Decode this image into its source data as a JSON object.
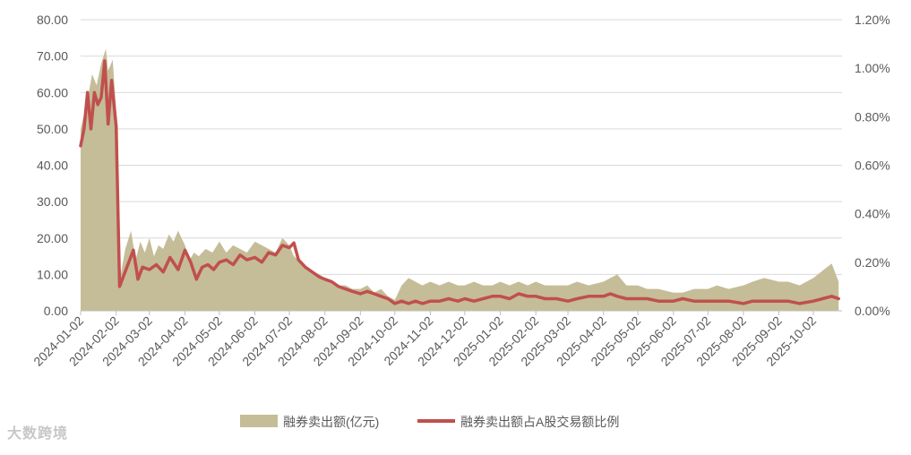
{
  "chart_data": {
    "type": "area+line",
    "title": "",
    "xlabel": "",
    "ylabel": "",
    "ylim": [
      0,
      80
    ],
    "y2lim": [
      0,
      1.2
    ],
    "grid": true,
    "legend_position": "bottom",
    "y_ticks": [
      "0.00",
      "10.00",
      "20.00",
      "30.00",
      "40.00",
      "50.00",
      "60.00",
      "70.00",
      "80.00"
    ],
    "y2_ticks": [
      "0.00%",
      "0.20%",
      "0.40%",
      "0.60%",
      "0.80%",
      "1.00%",
      "1.20%"
    ],
    "x_ticks": [
      "2024-01-02",
      "2024-02-02",
      "2024-03-02",
      "2024-04-02",
      "2024-05-02",
      "2024-06-02",
      "2024-07-02",
      "2024-08-02",
      "2024-09-02",
      "2024-10-02",
      "2024-11-02",
      "2024-12-02",
      "2025-01-02",
      "2025-02-02",
      "2025-03-02",
      "2025-04-02",
      "2025-05-02",
      "2025-06-02",
      "2025-07-02",
      "2025-08-02",
      "2025-09-02",
      "2025-10-02"
    ],
    "colors": {
      "area": "#c5bd98",
      "line": "#c0504d",
      "grid": "#d9d9d9",
      "axis": "#bfbfbf"
    },
    "series": [
      {
        "name": "融券卖出额(亿元)",
        "kind": "area",
        "axis": "left",
        "x": [
          "2024-01-02",
          "2024-01-08",
          "2024-01-12",
          "2024-01-16",
          "2024-01-20",
          "2024-01-24",
          "2024-01-26",
          "2024-01-30",
          "2024-02-02",
          "2024-02-06",
          "2024-02-10",
          "2024-02-15",
          "2024-02-19",
          "2024-02-23",
          "2024-02-27",
          "2024-03-02",
          "2024-03-06",
          "2024-03-10",
          "2024-03-14",
          "2024-03-19",
          "2024-03-23",
          "2024-03-27",
          "2024-04-02",
          "2024-04-06",
          "2024-04-10",
          "2024-04-14",
          "2024-04-20",
          "2024-04-26",
          "2024-05-02",
          "2024-05-08",
          "2024-05-14",
          "2024-05-20",
          "2024-05-26",
          "2024-06-02",
          "2024-06-08",
          "2024-06-14",
          "2024-06-20",
          "2024-06-26",
          "2024-07-02",
          "2024-07-06",
          "2024-07-10",
          "2024-07-16",
          "2024-07-22",
          "2024-07-28",
          "2024-08-02",
          "2024-08-08",
          "2024-08-14",
          "2024-08-20",
          "2024-08-26",
          "2024-09-02",
          "2024-09-08",
          "2024-09-14",
          "2024-09-20",
          "2024-09-26",
          "2024-10-02",
          "2024-10-08",
          "2024-10-14",
          "2024-10-20",
          "2024-10-26",
          "2024-11-02",
          "2024-11-10",
          "2024-11-18",
          "2024-11-26",
          "2024-12-02",
          "2024-12-10",
          "2024-12-18",
          "2024-12-26",
          "2025-01-02",
          "2025-01-10",
          "2025-01-18",
          "2025-01-26",
          "2025-02-02",
          "2025-02-10",
          "2025-02-20",
          "2025-03-02",
          "2025-03-10",
          "2025-03-20",
          "2025-04-02",
          "2025-04-08",
          "2025-04-14",
          "2025-04-22",
          "2025-05-02",
          "2025-05-10",
          "2025-05-20",
          "2025-06-02",
          "2025-06-10",
          "2025-06-20",
          "2025-07-02",
          "2025-07-10",
          "2025-07-20",
          "2025-08-02",
          "2025-08-10",
          "2025-08-20",
          "2025-09-02",
          "2025-09-10",
          "2025-09-20",
          "2025-10-02",
          "2025-10-10",
          "2025-10-18",
          "2025-10-24"
        ],
        "values": [
          50,
          58,
          65,
          62,
          68,
          72,
          66,
          69,
          55,
          10,
          17,
          22,
          14,
          19,
          16,
          20,
          15,
          18,
          17,
          21,
          19,
          22,
          18,
          14,
          16,
          15,
          17,
          16,
          19,
          16,
          18,
          17,
          16,
          19,
          18,
          17,
          16,
          20,
          18,
          15,
          14,
          12,
          11,
          10,
          9,
          8,
          7,
          7,
          6,
          6,
          7,
          5,
          6,
          4,
          3,
          7,
          9,
          8,
          7,
          8,
          7,
          8,
          7,
          7,
          8,
          7,
          7,
          8,
          7,
          8,
          7,
          8,
          7,
          7,
          7,
          8,
          7,
          8,
          9,
          10,
          7,
          7,
          6,
          6,
          5,
          5,
          6,
          6,
          7,
          6,
          7,
          8,
          9,
          8,
          8,
          7,
          9,
          11,
          13,
          8
        ]
      },
      {
        "name": "融券卖出额占A股交易额比例",
        "kind": "line",
        "axis": "right",
        "unit": "%",
        "x": [
          "2024-01-02",
          "2024-01-05",
          "2024-01-08",
          "2024-01-11",
          "2024-01-14",
          "2024-01-17",
          "2024-01-20",
          "2024-01-23",
          "2024-01-26",
          "2024-01-29",
          "2024-02-02",
          "2024-02-05",
          "2024-02-09",
          "2024-02-13",
          "2024-02-17",
          "2024-02-21",
          "2024-02-25",
          "2024-03-02",
          "2024-03-08",
          "2024-03-14",
          "2024-03-20",
          "2024-03-27",
          "2024-04-02",
          "2024-04-07",
          "2024-04-12",
          "2024-04-17",
          "2024-04-22",
          "2024-04-27",
          "2024-05-02",
          "2024-05-08",
          "2024-05-14",
          "2024-05-20",
          "2024-05-26",
          "2024-06-02",
          "2024-06-08",
          "2024-06-14",
          "2024-06-20",
          "2024-06-26",
          "2024-07-02",
          "2024-07-06",
          "2024-07-10",
          "2024-07-16",
          "2024-07-22",
          "2024-07-28",
          "2024-08-02",
          "2024-08-08",
          "2024-08-14",
          "2024-08-20",
          "2024-08-26",
          "2024-09-02",
          "2024-09-08",
          "2024-09-14",
          "2024-09-20",
          "2024-09-26",
          "2024-10-02",
          "2024-10-08",
          "2024-10-14",
          "2024-10-20",
          "2024-10-26",
          "2024-11-02",
          "2024-11-10",
          "2024-11-18",
          "2024-11-26",
          "2024-12-02",
          "2024-12-10",
          "2024-12-18",
          "2024-12-26",
          "2025-01-02",
          "2025-01-10",
          "2025-01-18",
          "2025-01-26",
          "2025-02-02",
          "2025-02-10",
          "2025-02-20",
          "2025-03-02",
          "2025-03-10",
          "2025-03-20",
          "2025-04-02",
          "2025-04-08",
          "2025-04-14",
          "2025-04-22",
          "2025-05-02",
          "2025-05-10",
          "2025-05-20",
          "2025-06-02",
          "2025-06-10",
          "2025-06-20",
          "2025-07-02",
          "2025-07-10",
          "2025-07-20",
          "2025-08-02",
          "2025-08-10",
          "2025-08-20",
          "2025-09-02",
          "2025-09-10",
          "2025-09-20",
          "2025-10-02",
          "2025-10-10",
          "2025-10-18",
          "2025-10-24"
        ],
        "values": [
          0.68,
          0.75,
          0.9,
          0.75,
          0.9,
          0.85,
          0.88,
          1.03,
          0.77,
          0.95,
          0.76,
          0.1,
          0.15,
          0.2,
          0.25,
          0.13,
          0.18,
          0.17,
          0.19,
          0.16,
          0.22,
          0.17,
          0.25,
          0.2,
          0.13,
          0.18,
          0.19,
          0.17,
          0.2,
          0.21,
          0.19,
          0.23,
          0.21,
          0.22,
          0.2,
          0.24,
          0.23,
          0.27,
          0.26,
          0.28,
          0.21,
          0.18,
          0.16,
          0.14,
          0.13,
          0.12,
          0.1,
          0.09,
          0.08,
          0.07,
          0.08,
          0.07,
          0.06,
          0.05,
          0.03,
          0.04,
          0.03,
          0.04,
          0.03,
          0.04,
          0.04,
          0.05,
          0.04,
          0.05,
          0.04,
          0.05,
          0.06,
          0.06,
          0.05,
          0.07,
          0.06,
          0.06,
          0.05,
          0.05,
          0.04,
          0.05,
          0.06,
          0.06,
          0.07,
          0.06,
          0.05,
          0.05,
          0.05,
          0.04,
          0.04,
          0.05,
          0.04,
          0.04,
          0.04,
          0.04,
          0.03,
          0.04,
          0.04,
          0.04,
          0.04,
          0.03,
          0.04,
          0.05,
          0.06,
          0.05
        ]
      }
    ]
  },
  "watermark": "大数跨境"
}
